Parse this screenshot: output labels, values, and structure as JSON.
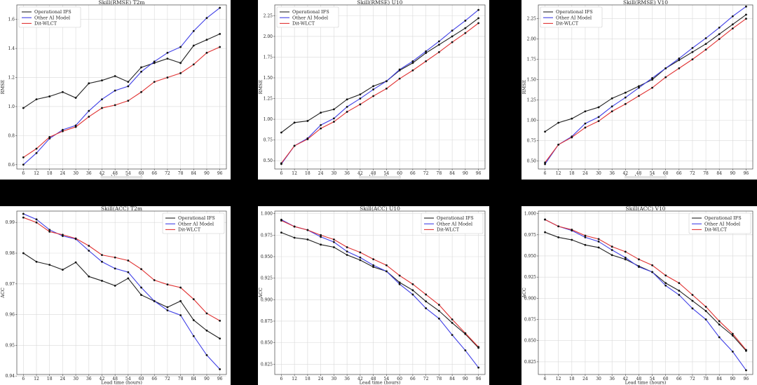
{
  "colors": {
    "background": "#000000",
    "Operational IFS": "#222222",
    "Other AI Model": "#3f3fe6",
    "Dit-WLCT": "#e03232"
  },
  "xlabel": "Lead time (hours)",
  "lead_times": [
    6,
    12,
    18,
    24,
    30,
    36,
    42,
    48,
    54,
    60,
    66,
    72,
    78,
    84,
    90,
    96
  ],
  "legend": [
    "Operational IFS",
    "Other AI Model",
    "Dit-WLCT"
  ],
  "chart_data": [
    {
      "id": "rmse-t2m",
      "type": "line",
      "title": "Skill(RMSE) T2m",
      "xlabel": "Lead time (hours)",
      "ylabel": "RMSE",
      "x": [
        6,
        12,
        18,
        24,
        30,
        36,
        42,
        48,
        54,
        60,
        66,
        72,
        78,
        84,
        90,
        96
      ],
      "ylim": [
        0.57,
        1.7
      ],
      "yticks": [
        0.6,
        0.8,
        1.0,
        1.2,
        1.4,
        1.6
      ],
      "ytick_decimals": 1,
      "legend_position": "top-left",
      "grid": true,
      "series": [
        {
          "name": "Operational IFS",
          "values": [
            0.99,
            1.05,
            1.07,
            1.1,
            1.06,
            1.16,
            1.18,
            1.21,
            1.17,
            1.27,
            1.3,
            1.33,
            1.3,
            1.42,
            1.46,
            1.5
          ]
        },
        {
          "name": "Other AI Model",
          "values": [
            0.6,
            0.68,
            0.78,
            0.84,
            0.87,
            0.97,
            1.05,
            1.11,
            1.14,
            1.24,
            1.31,
            1.37,
            1.41,
            1.52,
            1.61,
            1.68
          ]
        },
        {
          "name": "Dit-WLCT",
          "values": [
            0.65,
            0.71,
            0.79,
            0.83,
            0.86,
            0.93,
            0.99,
            1.01,
            1.04,
            1.1,
            1.17,
            1.2,
            1.23,
            1.29,
            1.37,
            1.41
          ]
        }
      ]
    },
    {
      "id": "rmse-u10",
      "type": "line",
      "title": "Skill(RMSE) U10",
      "xlabel": "Lead time (hours)",
      "ylabel": "RMSE",
      "x": [
        6,
        12,
        18,
        24,
        30,
        36,
        42,
        48,
        54,
        60,
        66,
        72,
        78,
        84,
        90,
        96
      ],
      "ylim": [
        0.4,
        2.38
      ],
      "yticks": [
        0.5,
        0.75,
        1.0,
        1.25,
        1.5,
        1.75,
        2.0,
        2.25
      ],
      "ytick_decimals": 2,
      "legend_position": "top-left",
      "grid": true,
      "series": [
        {
          "name": "Operational IFS",
          "values": [
            0.84,
            0.96,
            0.98,
            1.08,
            1.12,
            1.24,
            1.3,
            1.4,
            1.46,
            1.59,
            1.68,
            1.8,
            1.9,
            2.0,
            2.1,
            2.22
          ]
        },
        {
          "name": "Other AI Model",
          "values": [
            0.46,
            0.68,
            0.77,
            0.93,
            1.01,
            1.15,
            1.25,
            1.36,
            1.46,
            1.6,
            1.7,
            1.82,
            1.94,
            2.07,
            2.19,
            2.32
          ]
        },
        {
          "name": "Dit-WLCT",
          "values": [
            0.47,
            0.68,
            0.76,
            0.89,
            0.97,
            1.09,
            1.18,
            1.28,
            1.37,
            1.49,
            1.59,
            1.7,
            1.81,
            1.93,
            2.04,
            2.16
          ]
        }
      ]
    },
    {
      "id": "rmse-v10",
      "type": "line",
      "title": "Skill(RMSE) V10",
      "xlabel": "Lead time (hours)",
      "ylabel": "RMSE",
      "x": [
        6,
        12,
        18,
        24,
        30,
        36,
        42,
        48,
        54,
        60,
        66,
        72,
        78,
        84,
        90,
        96
      ],
      "ylim": [
        0.4,
        2.42
      ],
      "yticks": [
        0.5,
        0.75,
        1.0,
        1.25,
        1.5,
        1.75,
        2.0,
        2.25
      ],
      "ytick_decimals": 2,
      "legend_position": "top-left",
      "grid": true,
      "series": [
        {
          "name": "Operational IFS",
          "values": [
            0.86,
            0.97,
            1.02,
            1.11,
            1.16,
            1.27,
            1.34,
            1.42,
            1.5,
            1.64,
            1.74,
            1.84,
            1.94,
            2.06,
            2.18,
            2.3
          ]
        },
        {
          "name": "Other AI Model",
          "values": [
            0.46,
            0.7,
            0.8,
            0.96,
            1.04,
            1.17,
            1.28,
            1.4,
            1.52,
            1.64,
            1.76,
            1.89,
            2.01,
            2.14,
            2.28,
            2.4
          ]
        },
        {
          "name": "Dit-WLCT",
          "values": [
            0.48,
            0.7,
            0.79,
            0.91,
            0.99,
            1.11,
            1.2,
            1.3,
            1.4,
            1.53,
            1.64,
            1.75,
            1.87,
            2.0,
            2.13,
            2.25
          ]
        }
      ]
    },
    {
      "id": "acc-t2m",
      "type": "line",
      "title": "Skill(ACC) T2m",
      "xlabel": "Lead time (hours)",
      "ylabel": "ACC",
      "x": [
        6,
        12,
        18,
        24,
        30,
        36,
        42,
        48,
        54,
        60,
        66,
        72,
        78,
        84,
        90,
        96
      ],
      "ylim": [
        0.9405,
        0.9937
      ],
      "yticks": [
        0.94,
        0.95,
        0.96,
        0.97,
        0.98,
        0.99
      ],
      "ytick_decimals": 2,
      "legend_position": "top-right",
      "grid": true,
      "series": [
        {
          "name": "Operational IFS",
          "values": [
            0.98,
            0.9772,
            0.9762,
            0.9746,
            0.977,
            0.9724,
            0.971,
            0.9694,
            0.9718,
            0.9664,
            0.9644,
            0.9624,
            0.9644,
            0.9582,
            0.9548,
            0.9522
          ]
        },
        {
          "name": "Other AI Model",
          "values": [
            0.9928,
            0.991,
            0.9876,
            0.9856,
            0.9846,
            0.9808,
            0.9772,
            0.975,
            0.9738,
            0.9688,
            0.9644,
            0.9614,
            0.9598,
            0.953,
            0.9468,
            0.9422
          ]
        },
        {
          "name": "Dit-WLCT",
          "values": [
            0.9916,
            0.99,
            0.987,
            0.986,
            0.9848,
            0.9824,
            0.9794,
            0.9786,
            0.9776,
            0.9748,
            0.9712,
            0.9698,
            0.9688,
            0.965,
            0.9604,
            0.958
          ]
        }
      ]
    },
    {
      "id": "acc-u10",
      "type": "line",
      "title": "Skill(ACC) U10",
      "xlabel": "Lead time (hours)",
      "ylabel": "ACC",
      "x": [
        6,
        12,
        18,
        24,
        30,
        36,
        42,
        48,
        54,
        60,
        66,
        72,
        78,
        84,
        90,
        96
      ],
      "ylim": [
        0.813,
        1.003
      ],
      "yticks": [
        0.825,
        0.85,
        0.875,
        0.9,
        0.925,
        0.95,
        0.975,
        1.0
      ],
      "ytick_decimals": 3,
      "legend_position": "top-right",
      "grid": true,
      "series": [
        {
          "name": "Operational IFS",
          "values": [
            0.978,
            0.972,
            0.97,
            0.964,
            0.961,
            0.952,
            0.946,
            0.938,
            0.933,
            0.92,
            0.911,
            0.898,
            0.887,
            0.873,
            0.86,
            0.844
          ]
        },
        {
          "name": "Other AI Model",
          "values": [
            0.993,
            0.985,
            0.981,
            0.973,
            0.967,
            0.956,
            0.949,
            0.94,
            0.933,
            0.918,
            0.906,
            0.89,
            0.878,
            0.859,
            0.841,
            0.821
          ]
        },
        {
          "name": "Dit-WLCT",
          "values": [
            0.992,
            0.985,
            0.981,
            0.975,
            0.97,
            0.961,
            0.955,
            0.947,
            0.94,
            0.928,
            0.918,
            0.906,
            0.894,
            0.877,
            0.861,
            0.845
          ]
        }
      ]
    },
    {
      "id": "acc-v10",
      "type": "line",
      "title": "Skill(ACC) V10",
      "xlabel": "Lead time (hours)",
      "ylabel": "ACC",
      "x": [
        6,
        12,
        18,
        24,
        30,
        36,
        42,
        48,
        54,
        60,
        66,
        72,
        78,
        84,
        90,
        96
      ],
      "ylim": [
        0.81,
        1.003
      ],
      "yticks": [
        0.825,
        0.85,
        0.875,
        0.9,
        0.925,
        0.95,
        0.975,
        1.0
      ],
      "ytick_decimals": 3,
      "legend_position": "top-right",
      "grid": true,
      "series": [
        {
          "name": "Operational IFS",
          "values": [
            0.978,
            0.972,
            0.969,
            0.963,
            0.96,
            0.951,
            0.946,
            0.938,
            0.931,
            0.918,
            0.909,
            0.897,
            0.885,
            0.869,
            0.856,
            0.838
          ]
        },
        {
          "name": "Other AI Model",
          "values": [
            0.993,
            0.985,
            0.98,
            0.972,
            0.967,
            0.957,
            0.948,
            0.937,
            0.931,
            0.915,
            0.904,
            0.888,
            0.875,
            0.854,
            0.837,
            0.815
          ]
        },
        {
          "name": "Dit-WLCT",
          "values": [
            0.993,
            0.985,
            0.981,
            0.974,
            0.97,
            0.961,
            0.955,
            0.946,
            0.939,
            0.927,
            0.918,
            0.904,
            0.89,
            0.873,
            0.858,
            0.839
          ]
        }
      ]
    }
  ]
}
